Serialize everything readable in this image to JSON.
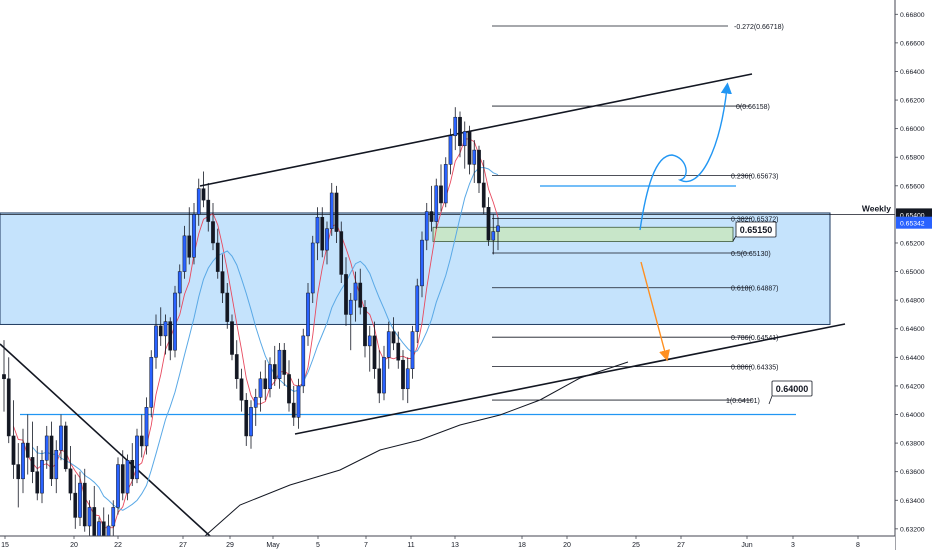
{
  "chart_data": {
    "type": "candlestick",
    "title": "",
    "xlabel": "",
    "ylabel": "",
    "ylim": [
      0.6315,
      0.669
    ],
    "grid": false,
    "legend": "none",
    "colors": {
      "up": "#2962ff",
      "down": "#131722",
      "fast_ma": "#e84a5f",
      "slow_ma": "#5aa9e6",
      "long_ma": "#131722",
      "zone_fill": "#bbdefb",
      "zone_border": "#1e3a5f",
      "support_box": "#c8e6c9",
      "bull_arrow": "#2196f3",
      "bear_arrow": "#ff8f1f",
      "level_line": "#2196f3",
      "price_tag": "#2962ff"
    },
    "x_tick_labels": [
      "15",
      "20",
      "22",
      "27",
      "29",
      "May",
      "5",
      "7",
      "11",
      "13",
      "18",
      "20",
      "25",
      "27",
      "Jun",
      "3",
      "8"
    ],
    "y_tick_labels": [
      "0.66800",
      "0.66600",
      "0.66400",
      "0.66200",
      "0.66000",
      "0.65800",
      "0.65600",
      "0.65200",
      "0.65000",
      "0.64800",
      "0.64600",
      "0.64400",
      "0.64200",
      "0.64000",
      "0.63800",
      "0.63600",
      "0.63400",
      "0.63200"
    ],
    "price_tag": {
      "label": "Weekly",
      "value": "0.65400",
      "current": "0.65342"
    },
    "zone": {
      "low": 0.6463,
      "high": 0.6541
    },
    "support_box": {
      "low": 0.6521,
      "high": 0.6531
    },
    "fib_levels": [
      {
        "label": "-0.272(0.66718)",
        "value": 0.66718
      },
      {
        "label": "0(0.66158)",
        "value": 0.66158
      },
      {
        "label": "0.236(0.65673)",
        "value": 0.65673
      },
      {
        "label": "0.382(0.65372)",
        "value": 0.65372
      },
      {
        "label": "0.5(0.65130)",
        "value": 0.6513
      },
      {
        "label": "0.618(0.64887)",
        "value": 0.64887
      },
      {
        "label": "0.786(0.64541)",
        "value": 0.64541
      },
      {
        "label": "0.886(0.64335)",
        "value": 0.64335
      },
      {
        "label": "1(0.64101)",
        "value": 0.64101
      }
    ],
    "annotations": [
      {
        "label": "0.65150",
        "value": 0.6515
      },
      {
        "label": "0.64000",
        "value": 0.64
      }
    ],
    "candles": [
      {
        "o": 0.6428,
        "h": 0.6452,
        "l": 0.6402,
        "c": 0.6425
      },
      {
        "o": 0.6425,
        "h": 0.644,
        "l": 0.638,
        "c": 0.6385
      },
      {
        "o": 0.6385,
        "h": 0.641,
        "l": 0.6355,
        "c": 0.6365
      },
      {
        "o": 0.6365,
        "h": 0.638,
        "l": 0.6335,
        "c": 0.6355
      },
      {
        "o": 0.6355,
        "h": 0.639,
        "l": 0.6345,
        "c": 0.638
      },
      {
        "o": 0.638,
        "h": 0.64,
        "l": 0.6358,
        "c": 0.637
      },
      {
        "o": 0.637,
        "h": 0.6395,
        "l": 0.6352,
        "c": 0.636
      },
      {
        "o": 0.636,
        "h": 0.6378,
        "l": 0.634,
        "c": 0.6345
      },
      {
        "o": 0.6345,
        "h": 0.6375,
        "l": 0.6338,
        "c": 0.6368
      },
      {
        "o": 0.6368,
        "h": 0.6392,
        "l": 0.6362,
        "c": 0.6385
      },
      {
        "o": 0.6385,
        "h": 0.6395,
        "l": 0.635,
        "c": 0.6355
      },
      {
        "o": 0.6355,
        "h": 0.6382,
        "l": 0.6345,
        "c": 0.6375
      },
      {
        "o": 0.6375,
        "h": 0.64,
        "l": 0.6368,
        "c": 0.6392
      },
      {
        "o": 0.6392,
        "h": 0.6395,
        "l": 0.636,
        "c": 0.6362
      },
      {
        "o": 0.6362,
        "h": 0.6378,
        "l": 0.634,
        "c": 0.6345
      },
      {
        "o": 0.6345,
        "h": 0.6358,
        "l": 0.632,
        "c": 0.6328
      },
      {
        "o": 0.6328,
        "h": 0.636,
        "l": 0.6322,
        "c": 0.6352
      },
      {
        "o": 0.6352,
        "h": 0.6362,
        "l": 0.6318,
        "c": 0.6322
      },
      {
        "o": 0.6322,
        "h": 0.634,
        "l": 0.6305,
        "c": 0.6335
      },
      {
        "o": 0.6335,
        "h": 0.635,
        "l": 0.6308,
        "c": 0.6312
      },
      {
        "o": 0.6312,
        "h": 0.6328,
        "l": 0.63,
        "c": 0.6325
      },
      {
        "o": 0.6325,
        "h": 0.6335,
        "l": 0.6305,
        "c": 0.631
      },
      {
        "o": 0.631,
        "h": 0.633,
        "l": 0.63,
        "c": 0.6322
      },
      {
        "o": 0.6322,
        "h": 0.634,
        "l": 0.6315,
        "c": 0.6335
      },
      {
        "o": 0.6335,
        "h": 0.637,
        "l": 0.633,
        "c": 0.6365
      },
      {
        "o": 0.6365,
        "h": 0.6375,
        "l": 0.634,
        "c": 0.6345
      },
      {
        "o": 0.6345,
        "h": 0.6372,
        "l": 0.634,
        "c": 0.6368
      },
      {
        "o": 0.6368,
        "h": 0.638,
        "l": 0.635,
        "c": 0.6355
      },
      {
        "o": 0.6355,
        "h": 0.639,
        "l": 0.6352,
        "c": 0.6385
      },
      {
        "o": 0.6385,
        "h": 0.64,
        "l": 0.637,
        "c": 0.6378
      },
      {
        "o": 0.6378,
        "h": 0.6412,
        "l": 0.6372,
        "c": 0.6405
      },
      {
        "o": 0.6405,
        "h": 0.6445,
        "l": 0.6398,
        "c": 0.644
      },
      {
        "o": 0.644,
        "h": 0.647,
        "l": 0.6432,
        "c": 0.6462
      },
      {
        "o": 0.6462,
        "h": 0.6475,
        "l": 0.6448,
        "c": 0.6455
      },
      {
        "o": 0.6455,
        "h": 0.647,
        "l": 0.6442,
        "c": 0.6465
      },
      {
        "o": 0.6465,
        "h": 0.6468,
        "l": 0.6438,
        "c": 0.6445
      },
      {
        "o": 0.6445,
        "h": 0.649,
        "l": 0.644,
        "c": 0.6485
      },
      {
        "o": 0.6485,
        "h": 0.6505,
        "l": 0.6475,
        "c": 0.65
      },
      {
        "o": 0.65,
        "h": 0.6532,
        "l": 0.6495,
        "c": 0.6525
      },
      {
        "o": 0.6525,
        "h": 0.6545,
        "l": 0.6505,
        "c": 0.651
      },
      {
        "o": 0.651,
        "h": 0.6548,
        "l": 0.6505,
        "c": 0.654
      },
      {
        "o": 0.654,
        "h": 0.6565,
        "l": 0.6532,
        "c": 0.6558
      },
      {
        "o": 0.6558,
        "h": 0.657,
        "l": 0.6545,
        "c": 0.655
      },
      {
        "o": 0.655,
        "h": 0.6562,
        "l": 0.6528,
        "c": 0.6535
      },
      {
        "o": 0.6535,
        "h": 0.6548,
        "l": 0.6515,
        "c": 0.652
      },
      {
        "o": 0.652,
        "h": 0.653,
        "l": 0.6495,
        "c": 0.65
      },
      {
        "o": 0.65,
        "h": 0.6512,
        "l": 0.6478,
        "c": 0.6485
      },
      {
        "o": 0.6485,
        "h": 0.6492,
        "l": 0.646,
        "c": 0.6465
      },
      {
        "o": 0.6465,
        "h": 0.647,
        "l": 0.6438,
        "c": 0.6442
      },
      {
        "o": 0.6442,
        "h": 0.6452,
        "l": 0.6418,
        "c": 0.6425
      },
      {
        "o": 0.6425,
        "h": 0.6432,
        "l": 0.6402,
        "c": 0.641
      },
      {
        "o": 0.641,
        "h": 0.6415,
        "l": 0.6378,
        "c": 0.6385
      },
      {
        "o": 0.6385,
        "h": 0.641,
        "l": 0.6376,
        "c": 0.6405
      },
      {
        "o": 0.6405,
        "h": 0.6418,
        "l": 0.6392,
        "c": 0.6412
      },
      {
        "o": 0.6412,
        "h": 0.643,
        "l": 0.6402,
        "c": 0.6425
      },
      {
        "o": 0.6425,
        "h": 0.6438,
        "l": 0.641,
        "c": 0.6418
      },
      {
        "o": 0.6418,
        "h": 0.644,
        "l": 0.6412,
        "c": 0.6435
      },
      {
        "o": 0.6435,
        "h": 0.6448,
        "l": 0.642,
        "c": 0.6425
      },
      {
        "o": 0.6425,
        "h": 0.645,
        "l": 0.6418,
        "c": 0.6445
      },
      {
        "o": 0.6445,
        "h": 0.645,
        "l": 0.642,
        "c": 0.6428
      },
      {
        "o": 0.6428,
        "h": 0.6438,
        "l": 0.6402,
        "c": 0.6408
      },
      {
        "o": 0.6408,
        "h": 0.642,
        "l": 0.6392,
        "c": 0.6398
      },
      {
        "o": 0.6398,
        "h": 0.6425,
        "l": 0.639,
        "c": 0.642
      },
      {
        "o": 0.642,
        "h": 0.646,
        "l": 0.6415,
        "c": 0.6455
      },
      {
        "o": 0.6455,
        "h": 0.6492,
        "l": 0.6448,
        "c": 0.6485
      },
      {
        "o": 0.6485,
        "h": 0.6525,
        "l": 0.6478,
        "c": 0.652
      },
      {
        "o": 0.652,
        "h": 0.6545,
        "l": 0.6508,
        "c": 0.6538
      },
      {
        "o": 0.6538,
        "h": 0.6545,
        "l": 0.651,
        "c": 0.6515
      },
      {
        "o": 0.6515,
        "h": 0.6535,
        "l": 0.6505,
        "c": 0.653
      },
      {
        "o": 0.653,
        "h": 0.6562,
        "l": 0.6525,
        "c": 0.6555
      },
      {
        "o": 0.6555,
        "h": 0.656,
        "l": 0.652,
        "c": 0.6528
      },
      {
        "o": 0.6528,
        "h": 0.6535,
        "l": 0.6492,
        "c": 0.6498
      },
      {
        "o": 0.6498,
        "h": 0.651,
        "l": 0.6462,
        "c": 0.647
      },
      {
        "o": 0.647,
        "h": 0.6485,
        "l": 0.6445,
        "c": 0.648
      },
      {
        "o": 0.648,
        "h": 0.65,
        "l": 0.6465,
        "c": 0.6492
      },
      {
        "o": 0.6492,
        "h": 0.6502,
        "l": 0.647,
        "c": 0.6475
      },
      {
        "o": 0.6475,
        "h": 0.648,
        "l": 0.644,
        "c": 0.6448
      },
      {
        "o": 0.6448,
        "h": 0.6462,
        "l": 0.643,
        "c": 0.6455
      },
      {
        "o": 0.6455,
        "h": 0.6465,
        "l": 0.6425,
        "c": 0.6432
      },
      {
        "o": 0.6432,
        "h": 0.6445,
        "l": 0.6408,
        "c": 0.6415
      },
      {
        "o": 0.6415,
        "h": 0.6448,
        "l": 0.641,
        "c": 0.644
      },
      {
        "o": 0.644,
        "h": 0.6465,
        "l": 0.6432,
        "c": 0.6458
      },
      {
        "o": 0.6458,
        "h": 0.6468,
        "l": 0.6445,
        "c": 0.645
      },
      {
        "o": 0.645,
        "h": 0.6458,
        "l": 0.6432,
        "c": 0.6438
      },
      {
        "o": 0.6438,
        "h": 0.6445,
        "l": 0.641,
        "c": 0.6418
      },
      {
        "o": 0.6418,
        "h": 0.644,
        "l": 0.6408,
        "c": 0.6432
      },
      {
        "o": 0.6432,
        "h": 0.6462,
        "l": 0.6425,
        "c": 0.6458
      },
      {
        "o": 0.6458,
        "h": 0.6495,
        "l": 0.645,
        "c": 0.649
      },
      {
        "o": 0.649,
        "h": 0.6528,
        "l": 0.6482,
        "c": 0.6522
      },
      {
        "o": 0.6522,
        "h": 0.6548,
        "l": 0.6515,
        "c": 0.6542
      },
      {
        "o": 0.6542,
        "h": 0.656,
        "l": 0.6528,
        "c": 0.6535
      },
      {
        "o": 0.6535,
        "h": 0.6565,
        "l": 0.653,
        "c": 0.656
      },
      {
        "o": 0.656,
        "h": 0.6575,
        "l": 0.6542,
        "c": 0.6548
      },
      {
        "o": 0.6548,
        "h": 0.658,
        "l": 0.6545,
        "c": 0.6575
      },
      {
        "o": 0.6575,
        "h": 0.66,
        "l": 0.6568,
        "c": 0.6595
      },
      {
        "o": 0.6595,
        "h": 0.6615,
        "l": 0.6585,
        "c": 0.6608
      },
      {
        "o": 0.6608,
        "h": 0.6612,
        "l": 0.658,
        "c": 0.6588
      },
      {
        "o": 0.6588,
        "h": 0.6605,
        "l": 0.6572,
        "c": 0.6598
      },
      {
        "o": 0.6598,
        "h": 0.6602,
        "l": 0.6568,
        "c": 0.6575
      },
      {
        "o": 0.6575,
        "h": 0.6592,
        "l": 0.6562,
        "c": 0.6585
      },
      {
        "o": 0.6585,
        "h": 0.6588,
        "l": 0.6555,
        "c": 0.6562
      },
      {
        "o": 0.6562,
        "h": 0.6578,
        "l": 0.654,
        "c": 0.6545
      },
      {
        "o": 0.6545,
        "h": 0.6552,
        "l": 0.6518,
        "c": 0.6522
      },
      {
        "o": 0.6522,
        "h": 0.654,
        "l": 0.6512,
        "c": 0.6528
      },
      {
        "o": 0.6528,
        "h": 0.6538,
        "l": 0.6515,
        "c": 0.6532
      }
    ]
  }
}
